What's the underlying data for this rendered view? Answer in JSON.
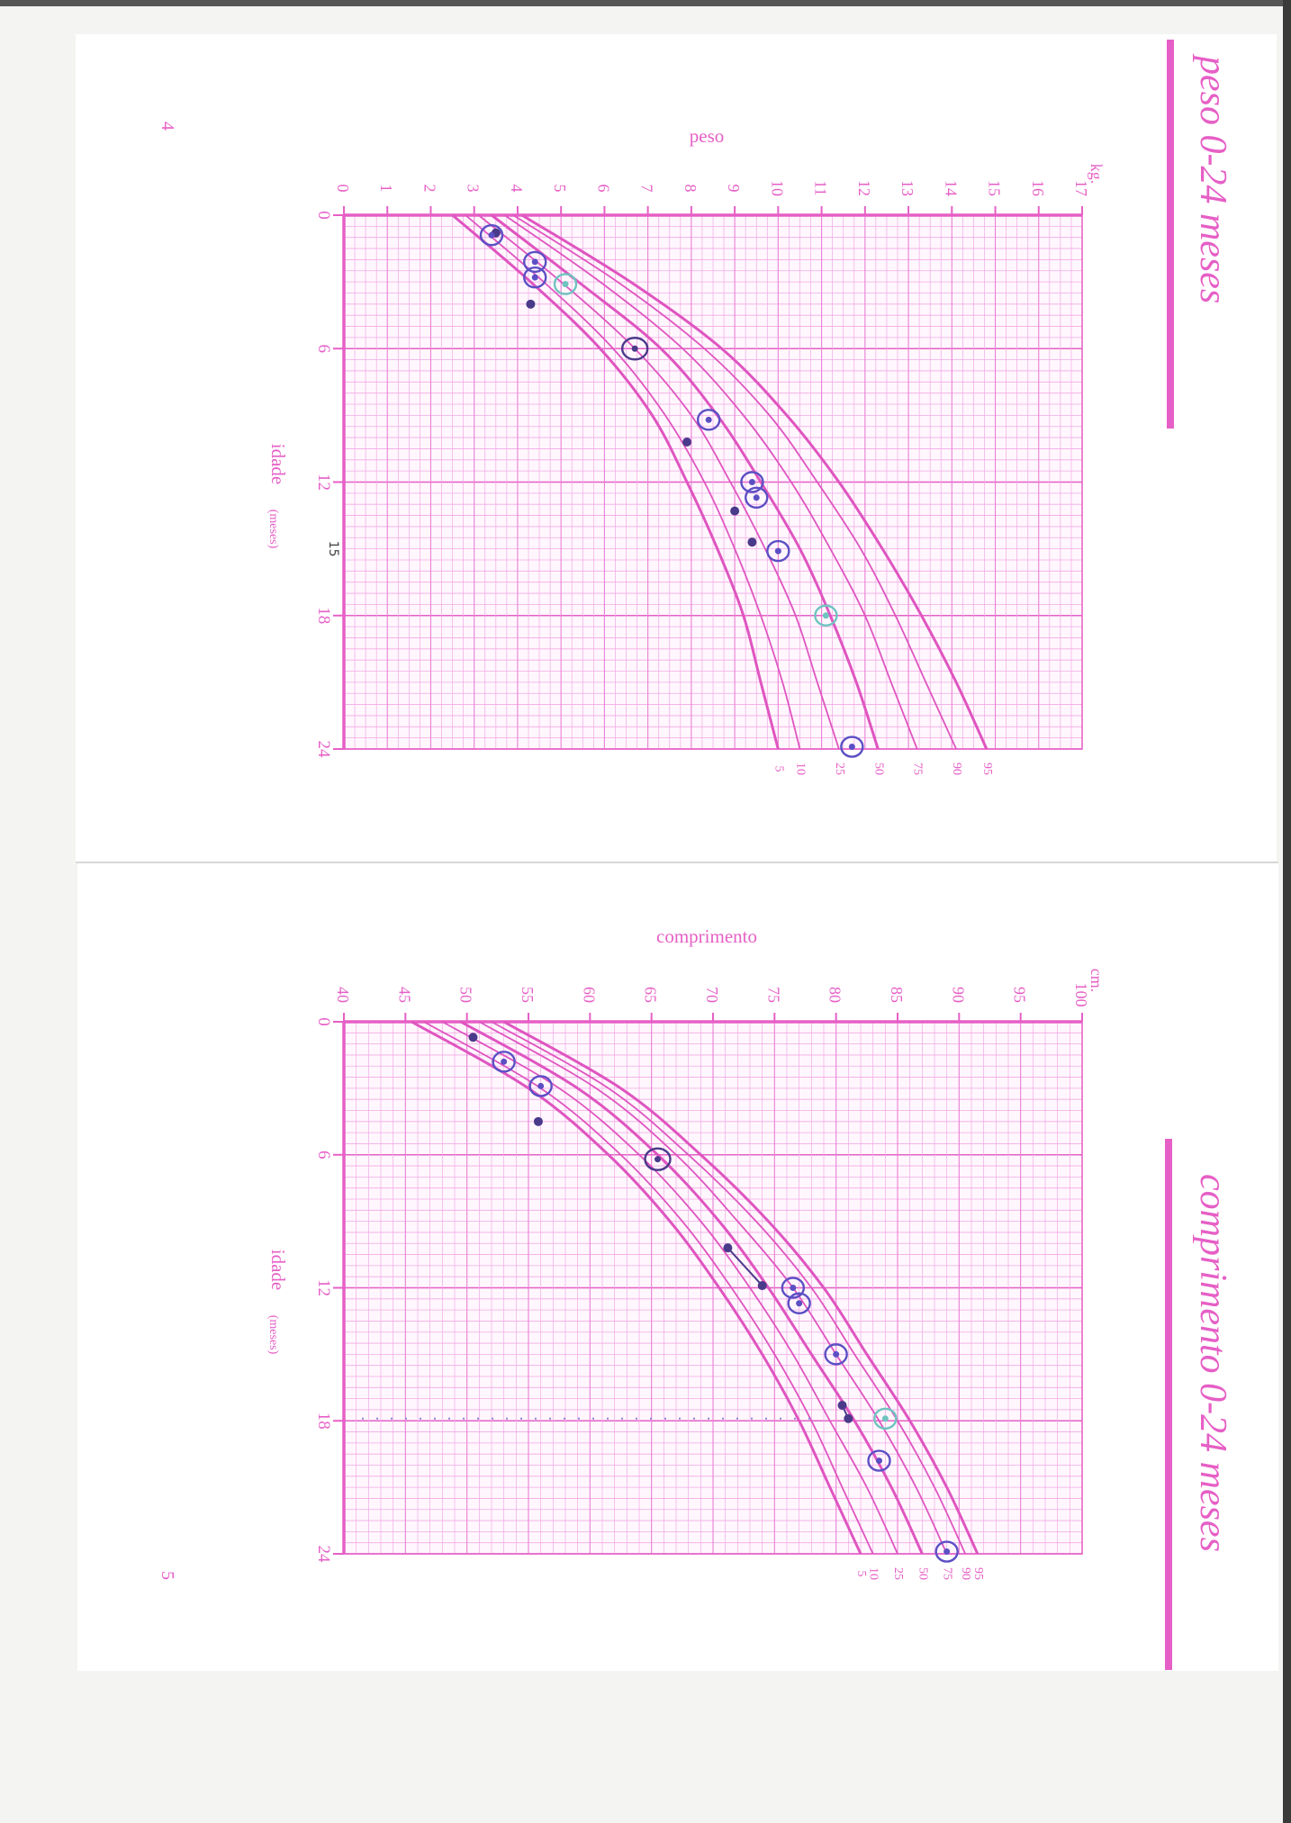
{
  "theme": {
    "pink": "#e65fc6",
    "grid": "#f2a8e6",
    "pen": "#5b4fc4",
    "pen_dark": "#4a3a8a",
    "teal": "#6fc4c0"
  },
  "pages": {
    "weight": {
      "number": "4",
      "side_title": "peso 0-24 meses"
    },
    "length": {
      "number": "5",
      "side_title": "comprimento 0-24 meses"
    }
  },
  "chart_data": [
    {
      "type": "line",
      "title": "peso",
      "xlabel": "idade",
      "xlabel_unit": "(meses)",
      "ylabel_unit": "kg.",
      "xlim": [
        0,
        24
      ],
      "ylim": [
        0,
        17
      ],
      "xticks": [
        0,
        6,
        12,
        18,
        24
      ],
      "yticks": [
        0,
        1,
        2,
        3,
        4,
        5,
        6,
        7,
        8,
        9,
        10,
        11,
        12,
        13,
        14,
        15,
        16,
        17
      ],
      "grid": true,
      "percentile_curves": [
        {
          "name": "5",
          "x": [
            0,
            3,
            6,
            9,
            12,
            15,
            18,
            21,
            24
          ],
          "y": [
            2.5,
            4.3,
            5.9,
            7.1,
            7.9,
            8.6,
            9.2,
            9.6,
            10.0
          ]
        },
        {
          "name": "10",
          "x": [
            0,
            3,
            6,
            9,
            12,
            15,
            18,
            21,
            24
          ],
          "y": [
            2.8,
            4.6,
            6.2,
            7.4,
            8.3,
            9.0,
            9.6,
            10.1,
            10.5
          ]
        },
        {
          "name": "25",
          "x": [
            0,
            3,
            6,
            9,
            12,
            15,
            18,
            21,
            24
          ],
          "y": [
            3.1,
            5.0,
            6.7,
            8.0,
            8.9,
            9.7,
            10.4,
            10.9,
            11.4
          ]
        },
        {
          "name": "50",
          "x": [
            0,
            3,
            6,
            9,
            12,
            15,
            18,
            21,
            24
          ],
          "y": [
            3.4,
            5.4,
            7.3,
            8.6,
            9.6,
            10.5,
            11.2,
            11.8,
            12.3
          ]
        },
        {
          "name": "75",
          "x": [
            0,
            3,
            6,
            9,
            12,
            15,
            18,
            21,
            24
          ],
          "y": [
            3.7,
            5.9,
            7.8,
            9.2,
            10.3,
            11.2,
            12.0,
            12.6,
            13.2
          ]
        },
        {
          "name": "90",
          "x": [
            0,
            3,
            6,
            9,
            12,
            15,
            18,
            21,
            24
          ],
          "y": [
            3.9,
            6.3,
            8.3,
            9.8,
            10.9,
            11.9,
            12.7,
            13.4,
            14.1
          ]
        },
        {
          "name": "95",
          "x": [
            0,
            3,
            6,
            9,
            12,
            15,
            18,
            21,
            24
          ],
          "y": [
            4.1,
            6.6,
            8.7,
            10.2,
            11.4,
            12.4,
            13.3,
            14.1,
            14.8
          ]
        }
      ],
      "measurements": [
        {
          "x": 0.8,
          "y": 3.5,
          "style": "dot"
        },
        {
          "x": 0.9,
          "y": 3.4,
          "style": "ring"
        },
        {
          "x": 2.1,
          "y": 4.4,
          "style": "ring"
        },
        {
          "x": 2.8,
          "y": 4.4,
          "style": "ring"
        },
        {
          "x": 3.1,
          "y": 5.1,
          "style": "ring-teal"
        },
        {
          "x": 4.0,
          "y": 4.3,
          "style": "dot"
        },
        {
          "x": 6.0,
          "y": 6.7,
          "style": "ring-dark"
        },
        {
          "x": 9.2,
          "y": 8.4,
          "style": "ring"
        },
        {
          "x": 10.2,
          "y": 7.9,
          "style": "dot"
        },
        {
          "x": 12.0,
          "y": 9.4,
          "style": "ring"
        },
        {
          "x": 12.7,
          "y": 9.5,
          "style": "ring"
        },
        {
          "x": 13.3,
          "y": 9.0,
          "style": "dot"
        },
        {
          "x": 14.7,
          "y": 9.4,
          "style": "dot"
        },
        {
          "x": 15.1,
          "y": 10.0,
          "style": "ring"
        },
        {
          "x": 18.0,
          "y": 11.1,
          "style": "ring-teal"
        },
        {
          "x": 23.9,
          "y": 11.7,
          "style": "ring"
        }
      ],
      "annotation": "15"
    },
    {
      "type": "line",
      "title": "comprimento",
      "xlabel": "idade",
      "xlabel_unit": "(meses)",
      "ylabel_unit": "cm.",
      "xlim": [
        0,
        24
      ],
      "ylim": [
        40,
        100
      ],
      "xticks": [
        0,
        6,
        12,
        18,
        24
      ],
      "yticks": [
        40,
        45,
        50,
        55,
        60,
        65,
        70,
        75,
        80,
        85,
        90,
        95,
        100
      ],
      "grid": true,
      "percentile_curves": [
        {
          "name": "5",
          "x": [
            0,
            3,
            6,
            9,
            12,
            15,
            18,
            21,
            24
          ],
          "y": [
            45.5,
            55.0,
            61.5,
            66.5,
            70.5,
            74.0,
            77.0,
            79.5,
            82.0
          ]
        },
        {
          "name": "10",
          "x": [
            0,
            3,
            6,
            9,
            12,
            15,
            18,
            21,
            24
          ],
          "y": [
            46.5,
            56.0,
            62.5,
            67.5,
            71.5,
            75.0,
            78.0,
            80.5,
            83.0
          ]
        },
        {
          "name": "25",
          "x": [
            0,
            3,
            6,
            9,
            12,
            15,
            18,
            21,
            24
          ],
          "y": [
            48.0,
            57.5,
            64.0,
            69.0,
            73.0,
            76.5,
            79.5,
            82.5,
            85.0
          ]
        },
        {
          "name": "50",
          "x": [
            0,
            3,
            6,
            9,
            12,
            15,
            18,
            21,
            24
          ],
          "y": [
            49.5,
            59.0,
            65.5,
            70.5,
            74.5,
            78.0,
            81.5,
            84.5,
            87.0
          ]
        },
        {
          "name": "75",
          "x": [
            0,
            3,
            6,
            9,
            12,
            15,
            18,
            21,
            24
          ],
          "y": [
            51.0,
            60.5,
            67.0,
            72.0,
            76.5,
            80.0,
            83.5,
            86.5,
            89.0
          ]
        },
        {
          "name": "90",
          "x": [
            0,
            3,
            6,
            9,
            12,
            15,
            18,
            21,
            24
          ],
          "y": [
            52.0,
            61.5,
            68.0,
            73.5,
            78.0,
            81.5,
            85.0,
            88.0,
            90.5
          ]
        },
        {
          "name": "95",
          "x": [
            0,
            3,
            6,
            9,
            12,
            15,
            18,
            21,
            24
          ],
          "y": [
            53.0,
            62.5,
            69.0,
            74.5,
            79.0,
            82.5,
            86.0,
            89.0,
            91.5
          ]
        }
      ],
      "measurements": [
        {
          "x": 0.7,
          "y": 50.5,
          "style": "dot"
        },
        {
          "x": 1.8,
          "y": 53.0,
          "style": "ring"
        },
        {
          "x": 2.9,
          "y": 56.0,
          "style": "ring"
        },
        {
          "x": 4.5,
          "y": 55.8,
          "style": "dot"
        },
        {
          "x": 6.2,
          "y": 65.5,
          "style": "ring-dark"
        },
        {
          "x": 10.2,
          "y": 71.2,
          "style": "dot"
        },
        {
          "x": 11.9,
          "y": 74.0,
          "style": "dot"
        },
        {
          "x": 12.0,
          "y": 76.5,
          "style": "ring"
        },
        {
          "x": 12.7,
          "y": 77.0,
          "style": "ring"
        },
        {
          "x": 15.0,
          "y": 80.0,
          "style": "ring"
        },
        {
          "x": 17.3,
          "y": 80.5,
          "style": "dot"
        },
        {
          "x": 17.9,
          "y": 81.0,
          "style": "dot"
        },
        {
          "x": 17.9,
          "y": 84.0,
          "style": "ring-teal"
        },
        {
          "x": 19.8,
          "y": 83.5,
          "style": "ring"
        },
        {
          "x": 23.9,
          "y": 89.0,
          "style": "ring"
        }
      ],
      "connected_pairs": [
        [
          5,
          6
        ],
        [
          10,
          11
        ]
      ],
      "dotted_line_x": 17.9
    }
  ]
}
